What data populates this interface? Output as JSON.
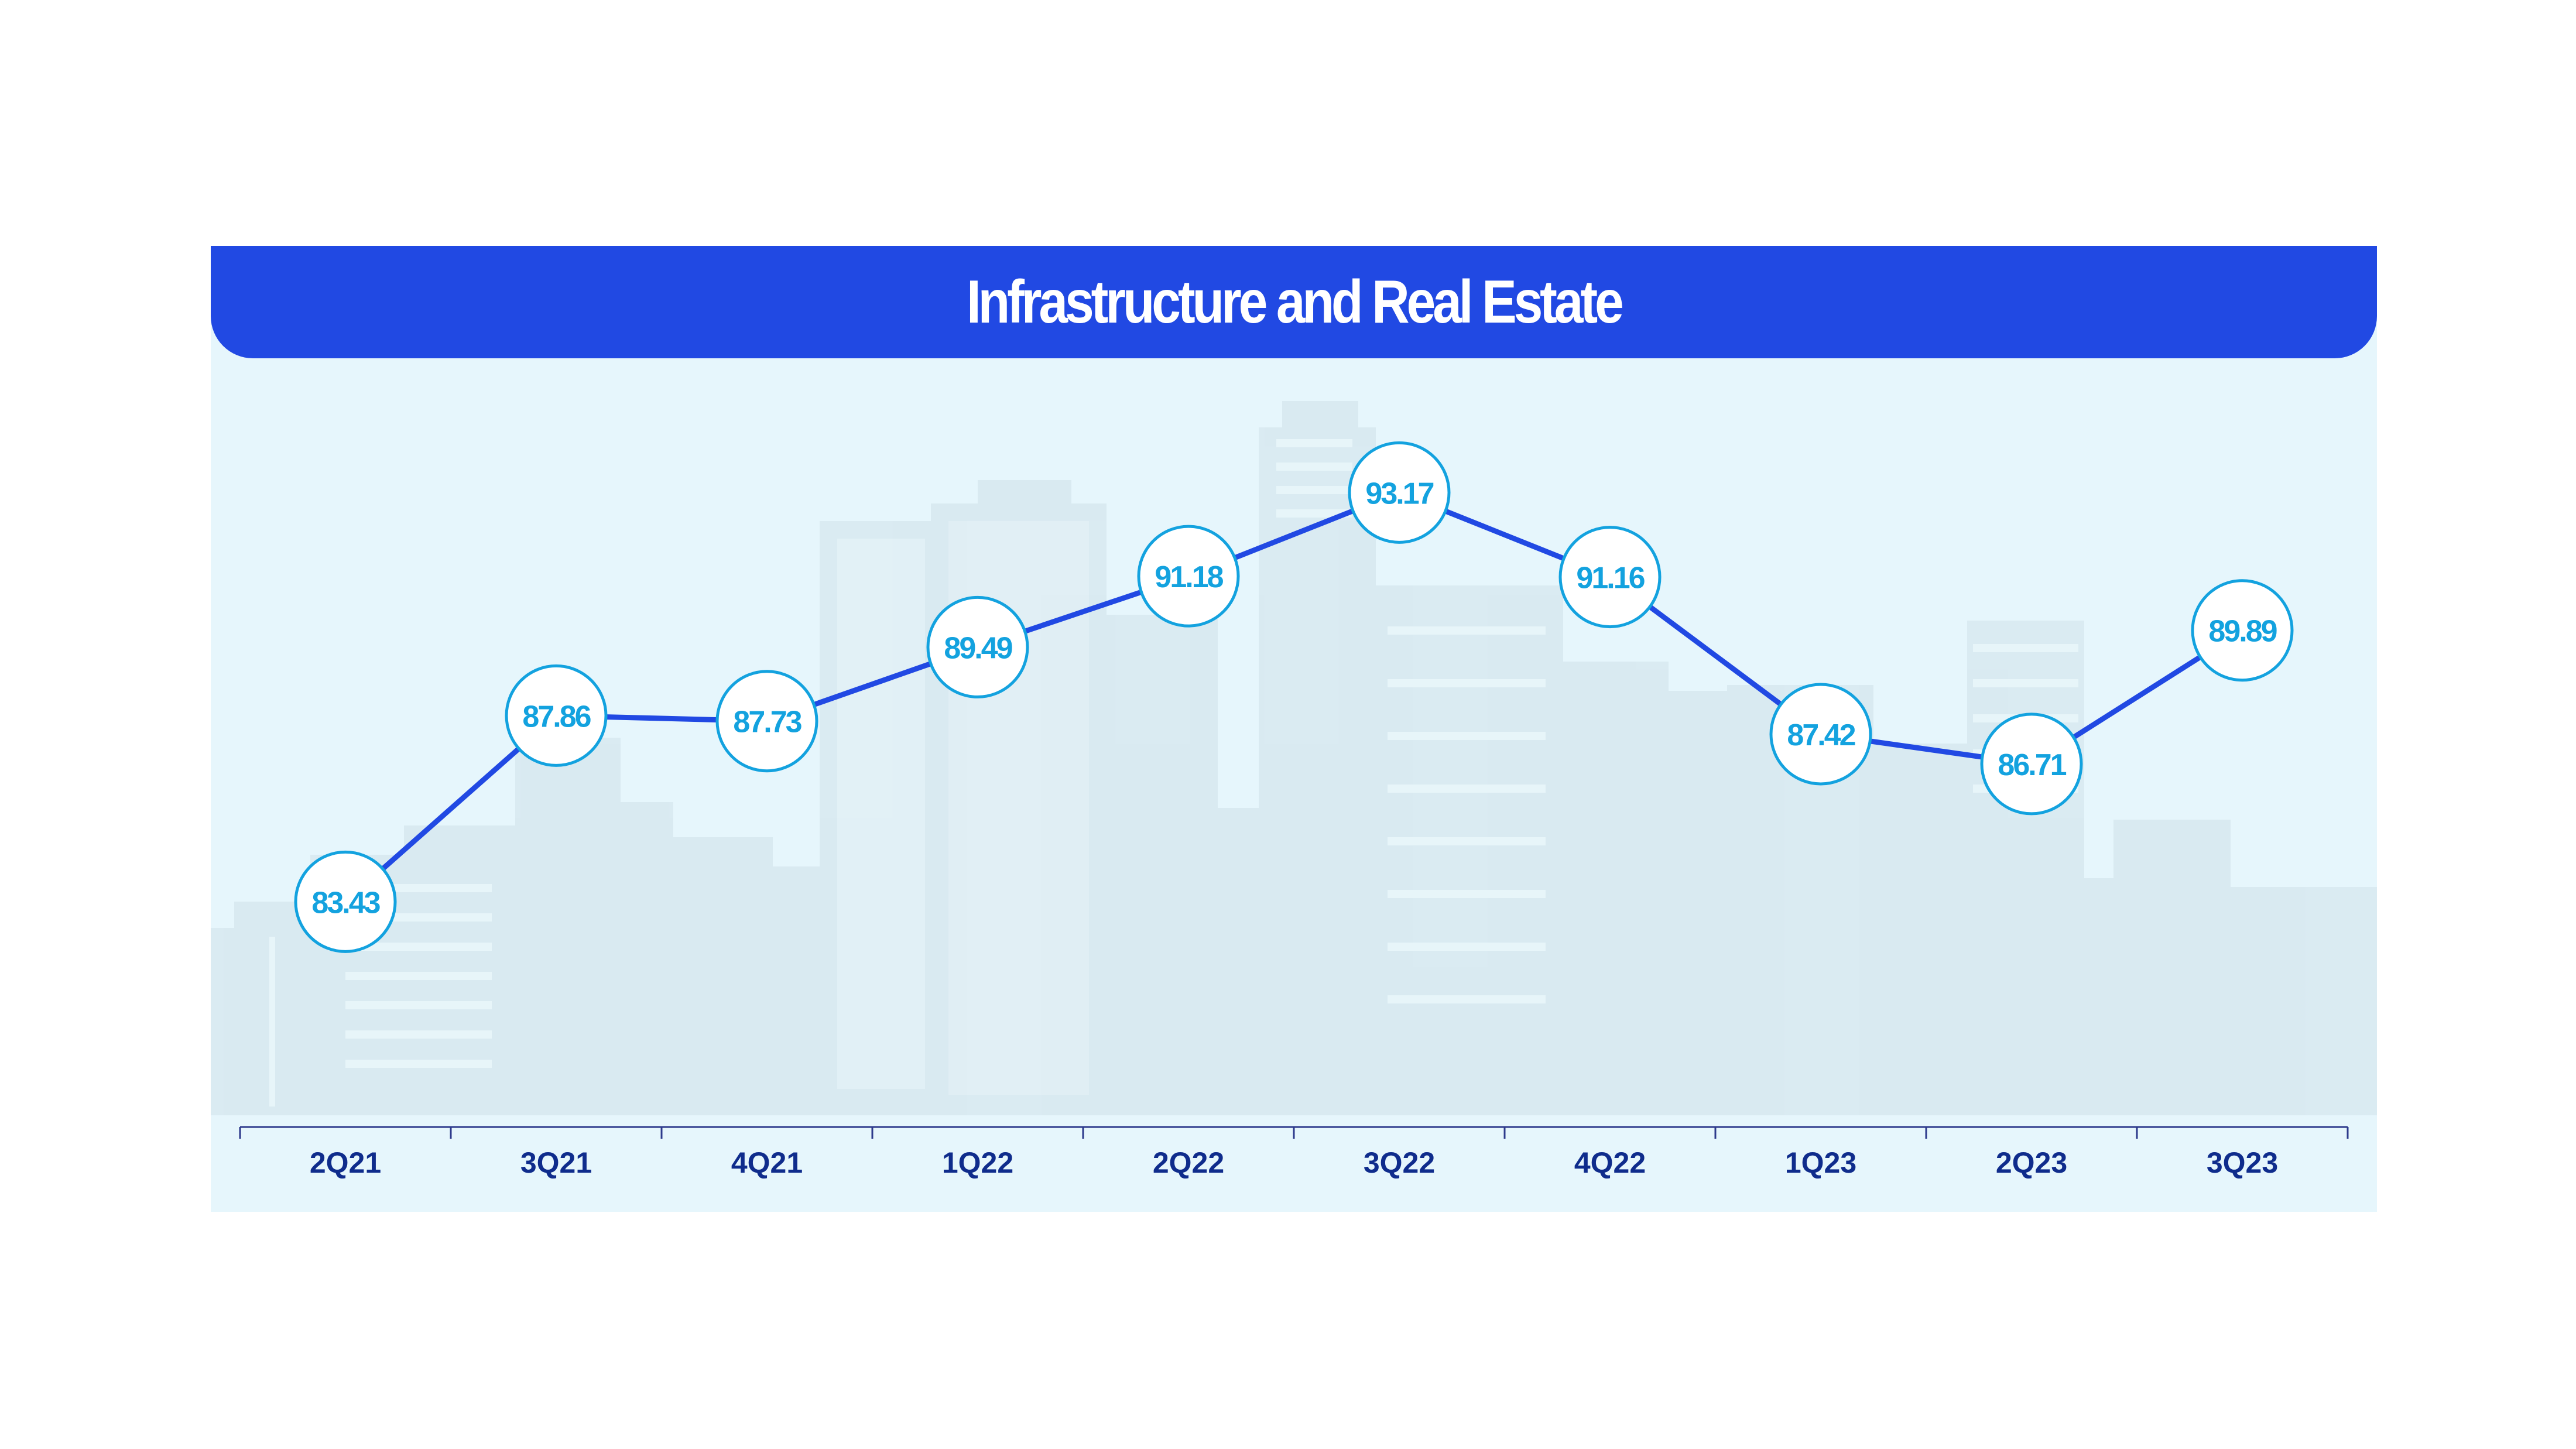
{
  "chart_data": {
    "type": "line",
    "title": "Infrastructure and Real Estate",
    "categories": [
      "2Q21",
      "3Q21",
      "4Q21",
      "1Q22",
      "2Q22",
      "3Q22",
      "4Q22",
      "1Q23",
      "2Q23",
      "3Q23"
    ],
    "values": [
      83.43,
      87.86,
      87.73,
      89.49,
      91.18,
      93.17,
      91.16,
      87.42,
      86.71,
      89.89
    ],
    "data_labels": [
      "83.43",
      "87.86",
      "87.73",
      "89.49",
      "91.18",
      "93.17",
      "91.16",
      "87.42",
      "86.71",
      "89.89"
    ],
    "xlabel": "",
    "ylabel": "",
    "ylim": [
      78,
      95
    ],
    "grid": false,
    "legend": "none",
    "colors": {
      "line": "#2149e3",
      "marker_fill": "#ffffff",
      "marker_stroke": "#13a2df",
      "label": "#13a2df",
      "tick_label": "#0f2c8c",
      "title_bar": "#2149e3",
      "background": "#e6f6fc"
    }
  }
}
